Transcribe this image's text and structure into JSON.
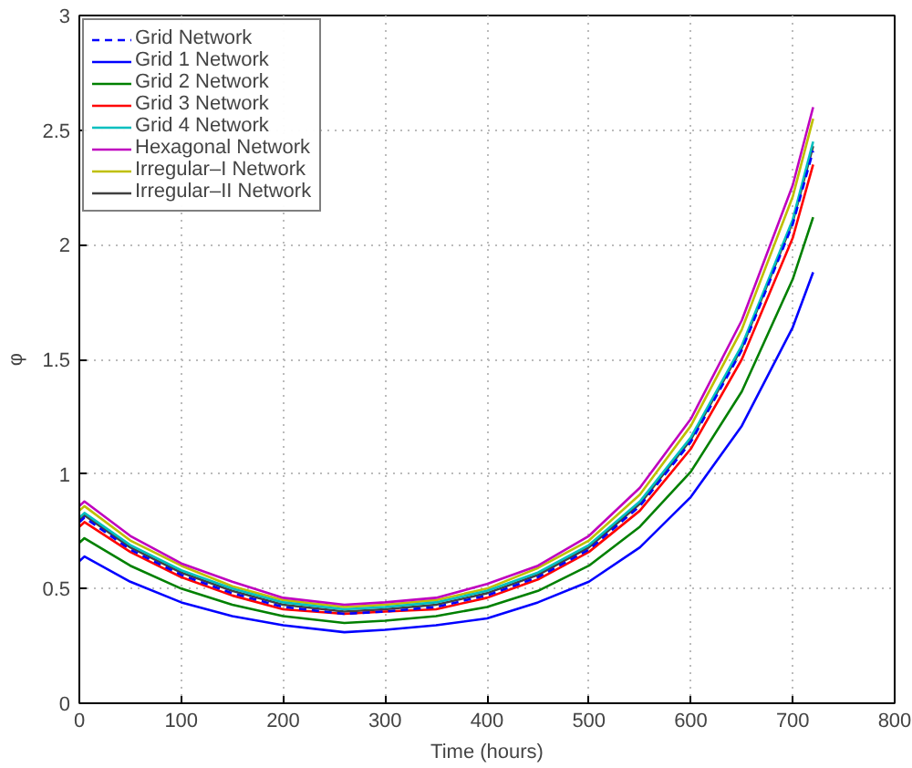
{
  "chart_data": {
    "type": "line",
    "xlabel": "Time (hours)",
    "ylabel": "φ",
    "x": [
      0,
      5,
      50,
      100,
      150,
      200,
      260,
      300,
      350,
      400,
      450,
      500,
      550,
      600,
      650,
      700,
      720
    ],
    "xlim": [
      0,
      800
    ],
    "xticks": [
      0,
      100,
      200,
      300,
      400,
      500,
      600,
      700,
      800
    ],
    "ylim": [
      0,
      3
    ],
    "yticks": [
      0,
      {
        "value": 0.5,
        "label": "0.5"
      },
      1,
      {
        "value": 1.5,
        "label": "1.5"
      },
      2,
      {
        "value": 2.5,
        "label": "2.5"
      },
      3
    ],
    "grid": true,
    "legend": "top left",
    "marker": "none",
    "series": [
      {
        "name": "Grid Network",
        "color": "#0000ff",
        "line_style": "dashed",
        "values": [
          0.79,
          0.81,
          0.67,
          0.56,
          0.48,
          0.42,
          0.39,
          0.4,
          0.42,
          0.47,
          0.55,
          0.67,
          0.86,
          1.14,
          1.54,
          2.09,
          2.41
        ]
      },
      {
        "name": "Grid 1 Network",
        "color": "#0000ff",
        "line_style": "solid",
        "values": [
          0.62,
          0.64,
          0.53,
          0.44,
          0.38,
          0.34,
          0.31,
          0.32,
          0.34,
          0.37,
          0.44,
          0.53,
          0.68,
          0.9,
          1.21,
          1.64,
          1.88
        ]
      },
      {
        "name": "Grid 2 Network",
        "color": "#008000",
        "line_style": "solid",
        "values": [
          0.7,
          0.72,
          0.6,
          0.5,
          0.43,
          0.38,
          0.35,
          0.36,
          0.38,
          0.42,
          0.49,
          0.6,
          0.77,
          1.01,
          1.36,
          1.85,
          2.12
        ]
      },
      {
        "name": "Grid 3 Network",
        "color": "#ff0000",
        "line_style": "solid",
        "values": [
          0.77,
          0.79,
          0.66,
          0.55,
          0.47,
          0.41,
          0.39,
          0.4,
          0.41,
          0.46,
          0.54,
          0.66,
          0.84,
          1.11,
          1.5,
          2.03,
          2.35
        ]
      },
      {
        "name": "Grid 4 Network",
        "color": "#00bfbf",
        "line_style": "solid",
        "values": [
          0.81,
          0.83,
          0.69,
          0.58,
          0.5,
          0.44,
          0.41,
          0.42,
          0.44,
          0.49,
          0.57,
          0.69,
          0.88,
          1.16,
          1.56,
          2.11,
          2.45
        ]
      },
      {
        "name": "Hexagonal Network",
        "color": "#bf00bf",
        "line_style": "solid",
        "values": [
          0.86,
          0.88,
          0.73,
          0.61,
          0.53,
          0.46,
          0.43,
          0.44,
          0.46,
          0.52,
          0.6,
          0.73,
          0.94,
          1.24,
          1.67,
          2.26,
          2.6
        ]
      },
      {
        "name": "Irregular–I Network",
        "color": "#bfbf00",
        "line_style": "solid",
        "values": [
          0.84,
          0.86,
          0.71,
          0.6,
          0.51,
          0.45,
          0.42,
          0.43,
          0.45,
          0.5,
          0.59,
          0.71,
          0.91,
          1.21,
          1.63,
          2.21,
          2.55
        ]
      },
      {
        "name": "Irregular–II Network",
        "color": "#404040",
        "line_style": "solid",
        "values": [
          0.8,
          0.82,
          0.68,
          0.57,
          0.49,
          0.43,
          0.4,
          0.41,
          0.43,
          0.48,
          0.56,
          0.68,
          0.87,
          1.15,
          1.55,
          2.1,
          2.43
        ]
      }
    ]
  }
}
